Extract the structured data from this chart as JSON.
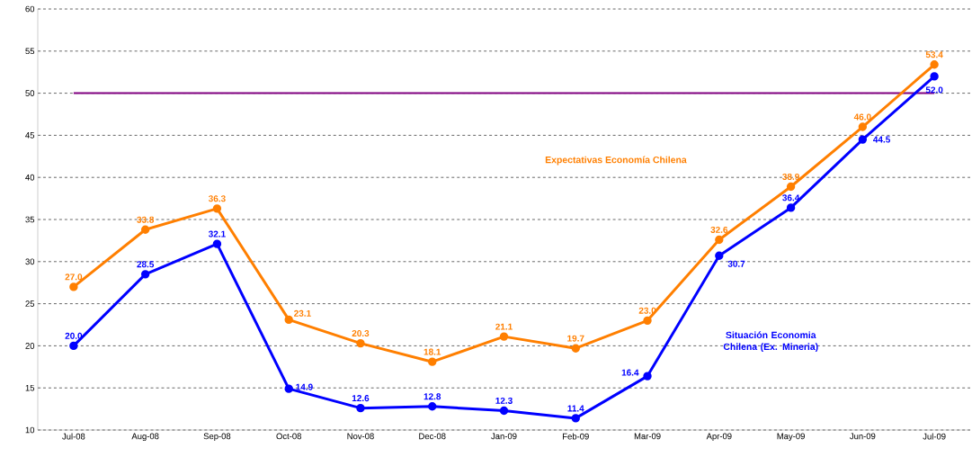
{
  "chart_data": {
    "type": "line",
    "categories": [
      "Jul-08",
      "Aug-08",
      "Sep-08",
      "Oct-08",
      "Nov-08",
      "Dec-08",
      "Jan-09",
      "Feb-09",
      "Mar-09",
      "Apr-09",
      "May-09",
      "Jun-09",
      "Jul-09"
    ],
    "series": [
      {
        "name": "Expectativas Economía Chilena",
        "color": "#ff7f00",
        "values": [
          27.0,
          33.8,
          36.3,
          23.1,
          20.3,
          18.1,
          21.1,
          19.7,
          23.0,
          32.6,
          38.9,
          46.0,
          53.4
        ],
        "value_labels": [
          "27.0",
          "33.8",
          "36.3",
          "23.1",
          "20.3",
          "18.1",
          "21.1",
          "19.7",
          "23.0",
          "32.6",
          "38.9",
          "46.0",
          "53.4"
        ]
      },
      {
        "name": "Situación Economia Chilena (Ex. Mineria)",
        "color": "#0000ff",
        "values": [
          20.0,
          28.5,
          32.1,
          14.9,
          12.6,
          12.8,
          12.3,
          11.4,
          16.4,
          30.7,
          36.4,
          44.5,
          52.0
        ],
        "value_labels": [
          "20.0",
          "28.5",
          "32.1",
          "14.9",
          "12.6",
          "12.8",
          "12.3",
          "11.4",
          "16.4",
          "30.7",
          "36.4",
          "44.5",
          "52.0"
        ]
      }
    ],
    "ylim": [
      10,
      60
    ],
    "yticks": [
      10,
      15,
      20,
      25,
      30,
      35,
      40,
      45,
      50,
      55,
      60
    ],
    "ref_lines": [
      {
        "axis": "y",
        "value": 50,
        "color": "#800080"
      }
    ],
    "grid": "y",
    "marker": "circle",
    "line_style": "solid"
  }
}
